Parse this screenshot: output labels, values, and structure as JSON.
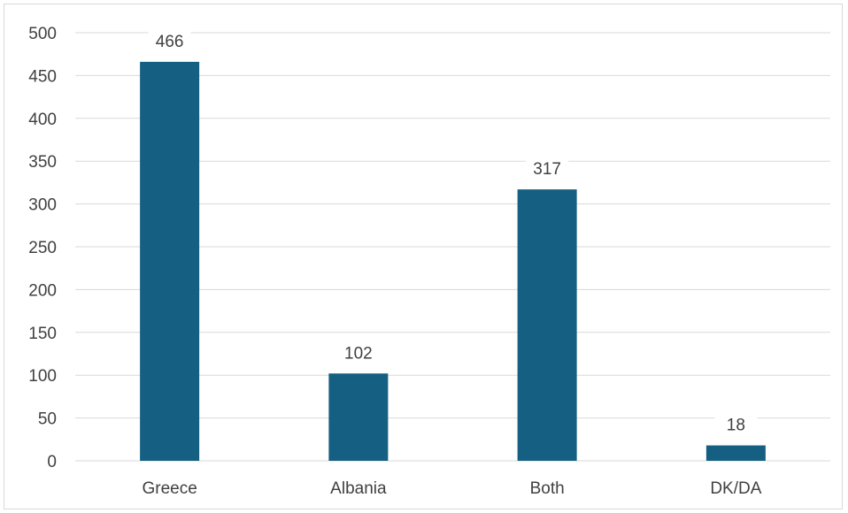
{
  "chart_data": {
    "type": "bar",
    "categories": [
      "Greece",
      "Albania",
      "Both",
      "DK/DA"
    ],
    "values": [
      466,
      102,
      317,
      18
    ],
    "data_labels": [
      "466",
      "102",
      "317",
      "18"
    ],
    "title": "",
    "xlabel": "",
    "ylabel": "",
    "ylim": [
      0,
      500
    ],
    "yticks": [
      0,
      50,
      100,
      150,
      200,
      250,
      300,
      350,
      400,
      450,
      500
    ],
    "grid": true,
    "legend": "none",
    "bar_color": "#156082"
  }
}
